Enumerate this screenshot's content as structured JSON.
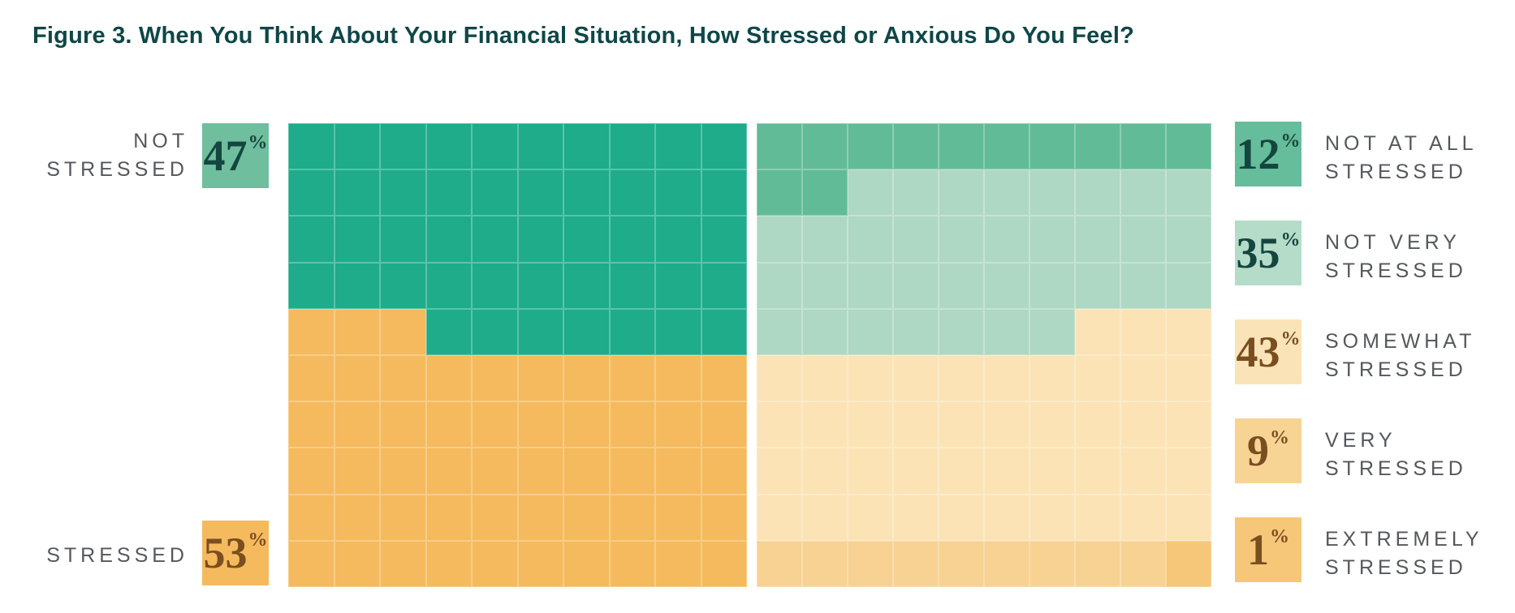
{
  "title": "Figure 3. When You Think About Your Financial Situation, How Stressed or Anxious Do You Feel?",
  "misc": {
    "percent_sign": "%"
  },
  "colors": {
    "title": "#0F4748",
    "label_gray": "#55575C",
    "overall_green": "#1EAC8B",
    "overall_orange": "#F5BA5E",
    "summary_green_box": "#6FBE9E",
    "summary_orange_box": "#F5BA5E",
    "num_teal": "#14463F",
    "num_brown": "#7A4E1F",
    "breakdown_green_med": "#61BB97",
    "breakdown_green_light": "#AFD8C4",
    "breakdown_orange_light": "#FBE3B6",
    "breakdown_orange_med": "#F8D292",
    "breakdown_orange_dark": "#F6C778"
  },
  "left_summary": {
    "top": {
      "value": "47",
      "label_line1": "NOT",
      "label_line2": "STRESSED"
    },
    "bottom": {
      "value": "53",
      "label": "STRESSED"
    }
  },
  "legend": {
    "items": [
      {
        "value": "12",
        "label_line1": "NOT AT ALL",
        "label_line2": "STRESSED",
        "box_color": "#66BD9B",
        "num_color": "#14463F"
      },
      {
        "value": "35",
        "label_line1": "NOT VERY",
        "label_line2": "STRESSED",
        "box_color": "#B5DCC9",
        "num_color": "#14463F"
      },
      {
        "value": "43",
        "label_line1": "SOMEWHAT",
        "label_line2": "STRESSED",
        "box_color": "#FBE3B8",
        "num_color": "#7A4E1F"
      },
      {
        "value": "9",
        "label_line1": "VERY",
        "label_line2": "STRESSED",
        "box_color": "#F8D494",
        "num_color": "#7A4E1F"
      },
      {
        "value": "1",
        "label_line1": "EXTREMELY",
        "label_line2": "STRESSED",
        "box_color": "#F6C778",
        "num_color": "#7A4E1F"
      }
    ]
  },
  "chart_data": {
    "type": "waffle",
    "title": "Figure 3. When You Think About Your Financial Situation, How Stressed or Anxious Do You Feel?",
    "grid": {
      "rows": 10,
      "cols": 10,
      "cell_unit_percent": 1
    },
    "panels": [
      {
        "name": "overall",
        "categories": [
          {
            "key": "1",
            "label": "NOT STRESSED",
            "value": 47,
            "color": "#1EAC8B"
          },
          {
            "key": "2",
            "label": "STRESSED",
            "value": 53,
            "color": "#F5BA5E"
          }
        ],
        "matrix": [
          "1111111111",
          "1111111111",
          "1111111111",
          "1111111111",
          "2221111111",
          "2222222222",
          "2222222222",
          "2222222222",
          "2222222222",
          "2222222222"
        ]
      },
      {
        "name": "breakdown",
        "categories": [
          {
            "key": "1",
            "label": "NOT AT ALL STRESSED",
            "value": 12,
            "color": "#61BB97"
          },
          {
            "key": "2",
            "label": "NOT VERY STRESSED",
            "value": 35,
            "color": "#AFD8C4"
          },
          {
            "key": "3",
            "label": "SOMEWHAT STRESSED",
            "value": 43,
            "color": "#FBE3B6"
          },
          {
            "key": "4",
            "label": "VERY STRESSED",
            "value": 9,
            "color": "#F8D292"
          },
          {
            "key": "5",
            "label": "EXTREMELY STRESSED",
            "value": 1,
            "color": "#F6C778"
          }
        ],
        "matrix": [
          "1111111111",
          "1122222222",
          "2222222222",
          "2222222222",
          "2222222333",
          "3333333333",
          "3333333333",
          "3333333333",
          "3333333333",
          "4444444445"
        ]
      }
    ]
  }
}
